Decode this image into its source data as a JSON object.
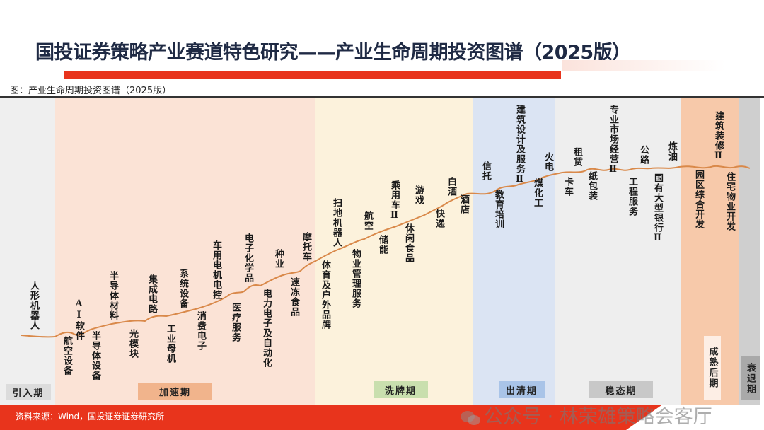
{
  "header": {
    "title": "国投证券策略产业赛道特色研究——产业生命周期投资图谱（2025版）",
    "subtitle": "图：产业生命周期投资图谱（2025版）"
  },
  "colors": {
    "accent_red": "#e8341c",
    "curve": "#d9894a",
    "introduction_band": "#efefef",
    "acceleration_band": "#fbe3d6",
    "shakeout_band": "#fcf2dc",
    "clearing_band": "#dbe4f3",
    "steady_band": "#eeeeee",
    "late_mature_band": "#f7c9aa",
    "decline_band": "#cfcfcf"
  },
  "stages": [
    {
      "label": "引入期",
      "color": "#dcdcdc"
    },
    {
      "label": "加速期",
      "color": "#f1b48c"
    },
    {
      "label": "洗牌期",
      "color": "#c9dfae"
    },
    {
      "label": "出清期",
      "color": "#a9c4e8"
    },
    {
      "label": "稳态期",
      "color": "#c8c8c8"
    },
    {
      "label": "成熟后期",
      "color": "#fdeee5"
    },
    {
      "label": "衰退期",
      "color": "#a9a9a9"
    }
  ],
  "industries": [
    "人形机器人",
    "AI软件",
    "航空设备",
    "半导体材料",
    "半导体设备",
    "集成电路",
    "光模块",
    "系统设备",
    "工业母机",
    "消费电子",
    "车用电机电控",
    "医疗服务",
    "电子化学品",
    "种业",
    "电力电子及自动化",
    "摩托车",
    "速冻食品",
    "扫地机器人",
    "体育及户外品牌",
    "航空",
    "物业管理服务",
    "储能",
    "乘用车Ⅱ",
    "游戏",
    "休闲食品",
    "快递",
    "白酒",
    "酒店",
    "信托",
    "教育培训",
    "建筑设计及服务Ⅱ",
    "火电",
    "煤化工",
    "租赁",
    "卡车",
    "纸包装",
    "专业市场经营Ⅱ",
    "公路",
    "工程服务",
    "炼油",
    "国有大型银行Ⅱ",
    "建筑装修Ⅱ",
    "园区综合开发",
    "住宅物业开发"
  ],
  "footer": {
    "source": "资料来源：Wind，国投证券证券研究所",
    "watermark": "公众号 · 林荣雄策略会客厅"
  }
}
